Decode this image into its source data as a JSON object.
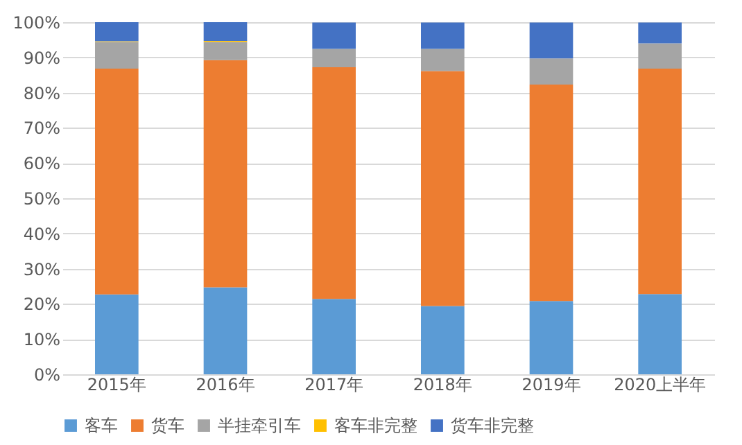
{
  "chart_data": {
    "type": "bar",
    "stacked": true,
    "categories": [
      "2015年",
      "2016年",
      "2017年",
      "2018年",
      "2019年",
      "2020上半年"
    ],
    "series": [
      {
        "name": "客车",
        "color": "#5b9bd5",
        "values": [
          22.7,
          24.7,
          21.4,
          19.4,
          20.8,
          22.8
        ]
      },
      {
        "name": "货车",
        "color": "#ed7d31",
        "values": [
          64.1,
          64.5,
          65.8,
          66.7,
          61.5,
          64.0
        ]
      },
      {
        "name": "半挂牵引车",
        "color": "#a5a5a5",
        "values": [
          7.6,
          5.2,
          5.2,
          6.3,
          7.4,
          7.2
        ]
      },
      {
        "name": "客车非完整",
        "color": "#ffc000",
        "values": [
          0.2,
          0.3,
          null,
          null,
          null,
          null
        ]
      },
      {
        "name": "货车非完整",
        "color": "#4472c4",
        "values": [
          5.4,
          5.3,
          7.5,
          7.5,
          10.2,
          5.9
        ]
      }
    ],
    "ylim": [
      0,
      100
    ],
    "yticks": [
      {
        "value": 0,
        "label": "0%"
      },
      {
        "value": 10,
        "label": "10%"
      },
      {
        "value": 20,
        "label": "20%"
      },
      {
        "value": 30,
        "label": "30%"
      },
      {
        "value": 40,
        "label": "40%"
      },
      {
        "value": 50,
        "label": "50%"
      },
      {
        "value": 60,
        "label": "60%"
      },
      {
        "value": 70,
        "label": "70%"
      },
      {
        "value": 80,
        "label": "80%"
      },
      {
        "value": 90,
        "label": "90%"
      },
      {
        "value": 100,
        "label": "100%"
      }
    ],
    "grid": "y",
    "legend": "bottom"
  }
}
